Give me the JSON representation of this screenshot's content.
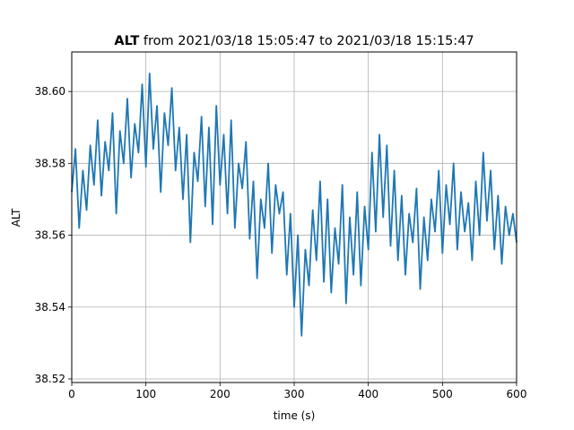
{
  "chart_data": {
    "type": "line",
    "title_bold": "ALT",
    "title_rest": " from 2021/03/18 15:05:47 to 2021/03/18 15:15:47",
    "xlabel": "time (s)",
    "ylabel": "ALT",
    "xlim": [
      0,
      600
    ],
    "ylim": [
      38.519,
      38.611
    ],
    "grid": true,
    "line_color": "#1f77b4",
    "x_ticks": [
      {
        "value": 0,
        "label": "0"
      },
      {
        "value": 100,
        "label": "100"
      },
      {
        "value": 200,
        "label": "200"
      },
      {
        "value": 300,
        "label": "300"
      },
      {
        "value": 400,
        "label": "400"
      },
      {
        "value": 500,
        "label": "500"
      },
      {
        "value": 600,
        "label": "600"
      }
    ],
    "y_ticks": [
      {
        "value": 38.52,
        "label": "38.52"
      },
      {
        "value": 38.54,
        "label": "38.54"
      },
      {
        "value": 38.56,
        "label": "38.56"
      },
      {
        "value": 38.58,
        "label": "38.58"
      },
      {
        "value": 38.6,
        "label": "38.60"
      }
    ],
    "series": [
      {
        "x": [
          0,
          5,
          10,
          15,
          20,
          25,
          30,
          35,
          40,
          45,
          50,
          55,
          60,
          65,
          70,
          75,
          80,
          85,
          90,
          95,
          100,
          105,
          110,
          115,
          120,
          125,
          130,
          135,
          140,
          145,
          150,
          155,
          160,
          165,
          170,
          175,
          180,
          185,
          190,
          195,
          200,
          205,
          210,
          215,
          220,
          225,
          230,
          235,
          240,
          245,
          250,
          255,
          260,
          265,
          270,
          275,
          280,
          285,
          290,
          295,
          300,
          305,
          310,
          315,
          320,
          325,
          330,
          335,
          340,
          345,
          350,
          355,
          360,
          365,
          370,
          375,
          380,
          385,
          390,
          395,
          400,
          405,
          410,
          415,
          420,
          425,
          430,
          435,
          440,
          445,
          450,
          455,
          460,
          465,
          470,
          475,
          480,
          485,
          490,
          495,
          500,
          505,
          510,
          515,
          520,
          525,
          530,
          535,
          540,
          545,
          550,
          555,
          560,
          565,
          570,
          575,
          580,
          585,
          590,
          595,
          600
        ],
        "y": [
          38.572,
          38.584,
          38.562,
          38.578,
          38.567,
          38.585,
          38.574,
          38.592,
          38.571,
          38.586,
          38.578,
          38.594,
          38.566,
          38.589,
          38.58,
          38.598,
          38.576,
          38.591,
          38.583,
          38.602,
          38.579,
          38.605,
          38.584,
          38.596,
          38.572,
          38.594,
          38.585,
          38.601,
          38.578,
          38.59,
          38.57,
          38.588,
          38.558,
          38.583,
          38.575,
          38.593,
          38.568,
          38.59,
          38.563,
          38.596,
          38.574,
          38.588,
          38.566,
          38.592,
          38.562,
          38.58,
          38.573,
          38.586,
          38.559,
          38.575,
          38.548,
          38.57,
          38.562,
          38.58,
          38.555,
          38.574,
          38.566,
          38.572,
          38.549,
          38.566,
          38.54,
          38.56,
          38.532,
          38.556,
          38.546,
          38.567,
          38.553,
          38.575,
          38.547,
          38.57,
          38.544,
          38.562,
          38.552,
          38.574,
          38.541,
          38.565,
          38.549,
          38.572,
          38.546,
          38.568,
          38.556,
          38.583,
          38.561,
          38.588,
          38.565,
          38.585,
          38.557,
          38.578,
          38.553,
          38.571,
          38.549,
          38.566,
          38.558,
          38.573,
          38.545,
          38.565,
          38.553,
          38.57,
          38.561,
          38.578,
          38.555,
          38.574,
          38.563,
          38.58,
          38.556,
          38.572,
          38.561,
          38.569,
          38.553,
          38.575,
          38.56,
          38.583,
          38.564,
          38.578,
          38.556,
          38.571,
          38.552,
          38.568,
          38.56,
          38.566,
          38.558
        ]
      }
    ]
  }
}
